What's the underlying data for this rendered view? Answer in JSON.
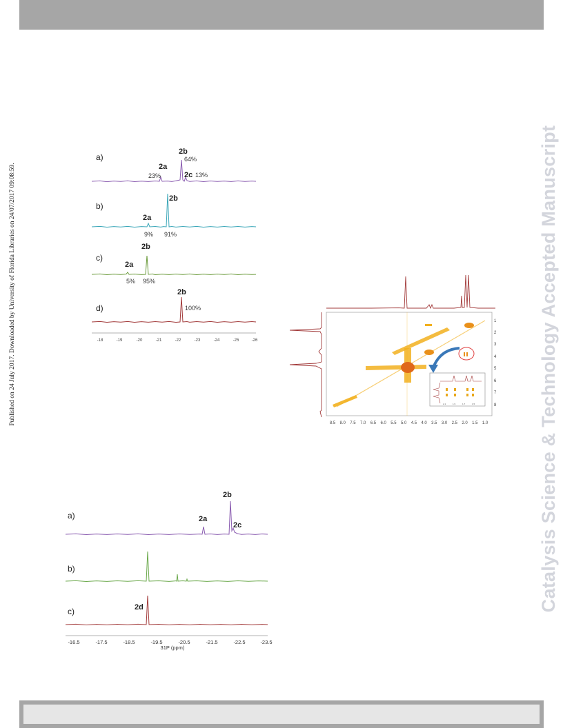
{
  "sidenote": "Published on 24 July 2017. Downloaded by University of Florida Libraries on 24/07/2017 09:08:59.",
  "watermark": "Catalysis Science & Technology Accepted Manuscript",
  "colors": {
    "bar": "#a6a6a6",
    "watermark": "#d3d5dc"
  },
  "figure1": {
    "panels": [
      {
        "label": "a)",
        "color": "#8a5cb0",
        "peaks": [
          {
            "name": "2a",
            "pct": "23%"
          },
          {
            "name": "2b",
            "pct": "64%"
          },
          {
            "name": "2c",
            "pct": "13%"
          }
        ]
      },
      {
        "label": "b)",
        "color": "#3aa6b8",
        "peaks": [
          {
            "name": "2a",
            "pct": "9%"
          },
          {
            "name": "2b",
            "pct": "91%"
          }
        ]
      },
      {
        "label": "c)",
        "color": "#6a9a3a",
        "peaks": [
          {
            "name": "2a",
            "pct": "5%"
          },
          {
            "name": "2b",
            "pct": "95%"
          }
        ]
      },
      {
        "label": "d)",
        "color": "#a23a3a",
        "peaks": [
          {
            "name": "2b",
            "pct": "100%"
          }
        ]
      }
    ],
    "axis_ticks": [
      "-18",
      "-19",
      "-20",
      "-21",
      "-22",
      "-23",
      "-24",
      "-25",
      "-26"
    ]
  },
  "figure2": {
    "x_ticks": [
      "8.5",
      "8.0",
      "7.5",
      "7.0",
      "6.5",
      "6.0",
      "5.5",
      "5.0",
      "4.5",
      "4.0",
      "3.5",
      "3.0",
      "2.5",
      "2.0",
      "1.5",
      "1.0"
    ],
    "y_ticks": [
      "1",
      "2",
      "3",
      "4",
      "5",
      "6",
      "7",
      "8"
    ],
    "inset_x_ticks": [
      "2.1",
      "1.9",
      "1.7",
      "1.5"
    ]
  },
  "figure3": {
    "panels": [
      {
        "label": "a)",
        "color": "#8a5cb0",
        "peaks": [
          "2a",
          "2b",
          "2c"
        ]
      },
      {
        "label": "b)",
        "color": "#6aa84a",
        "peaks": []
      },
      {
        "label": "c)",
        "color": "#a23a3a",
        "peaks": [
          "2d"
        ]
      }
    ],
    "axis_ticks": [
      "-16.5",
      "-17.5",
      "-18.5",
      "-19.5",
      "-20.5",
      "-21.5",
      "-22.5",
      "-23.5"
    ],
    "axis_label": "31P (ppm)"
  }
}
